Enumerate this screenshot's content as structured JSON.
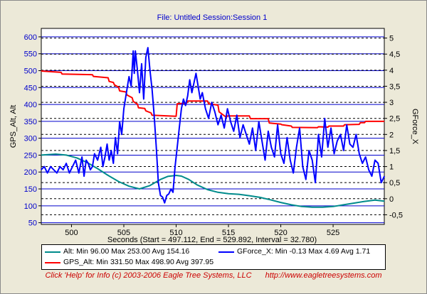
{
  "chart_data": {
    "type": "line",
    "title": "File: Untitled   Session:Session 1",
    "xlabel": "Seconds (Start = 497.112, End = 529.892, Interval = 32.780)",
    "ylabel_left": "GPS_Alt, Alt",
    "ylabel_right": "GForce_X",
    "xlim": [
      497.112,
      529.892
    ],
    "ylim_left": [
      45,
      625
    ],
    "ylim_right": [
      -0.8,
      5.3
    ],
    "x_ticks": [
      "500",
      "505",
      "510",
      "515",
      "520",
      "525"
    ],
    "y_ticks_left": [
      "50",
      "100",
      "150",
      "200",
      "250",
      "300",
      "350",
      "400",
      "450",
      "500",
      "550",
      "600"
    ],
    "y_ticks_right": [
      "-0,5",
      "0",
      "0,5",
      "1",
      "1,5",
      "2",
      "2,5",
      "3",
      "3,5",
      "4",
      "4,5",
      "5"
    ],
    "series": [
      {
        "name": "Alt",
        "axis": "left",
        "color": "#008b8b",
        "x": [
          497.1,
          498.5,
          499.5,
          500.5,
          501.5,
          502.5,
          503.5,
          504.5,
          505.5,
          506.5,
          507.5,
          508.5,
          509.2,
          510.0,
          510.5,
          511.2,
          512.0,
          513.0,
          514.0,
          515.0,
          516.0,
          517.0,
          518.0,
          519.0,
          520.0,
          521.0,
          522.0,
          523.0,
          524.0,
          525.0,
          526.0,
          527.0,
          528.0,
          529.0,
          529.9
        ],
        "y": [
          250,
          253,
          250,
          242,
          228,
          210,
          190,
          172,
          158,
          150,
          160,
          178,
          187,
          190,
          188,
          178,
          162,
          148,
          140,
          136,
          134,
          130,
          125,
          118,
          110,
          103,
          98,
          96,
          96,
          98,
          103,
          108,
          113,
          117,
          114
        ]
      },
      {
        "name": "GPS_Alt",
        "axis": "left",
        "color": "#ff0000",
        "x": [
          497.1,
          499.0,
          499.1,
          502.0,
          502.1,
          503.5,
          503.6,
          504.0,
          504.1,
          504.5,
          504.6,
          505.2,
          505.3,
          505.8,
          505.9,
          506.3,
          506.4,
          507.0,
          507.1,
          507.6,
          507.7,
          510.0,
          510.1,
          511.0,
          511.1,
          513.0,
          513.1,
          514.0,
          514.1,
          514.8,
          514.9,
          517.0,
          517.1,
          518.8,
          518.9,
          520.0,
          520.1,
          521.0,
          521.1,
          523.5,
          523.6,
          524.5,
          524.6,
          526.0,
          526.1,
          527.5,
          527.6,
          528.0,
          528.1,
          529.9
        ],
        "y": [
          498.9,
          495,
          490,
          488,
          483,
          479,
          468,
          465,
          458,
          451,
          440,
          437,
          428,
          420,
          409,
          401,
          390,
          388,
          381,
          375,
          368,
          365,
          402,
          404,
          410,
          410,
          402,
          398,
          378,
          362,
          366,
          366,
          358,
          358,
          345,
          342,
          340,
          336,
          332,
          331.5,
          334,
          333,
          336,
          336,
          340,
          341,
          346,
          346,
          350,
          350
        ]
      },
      {
        "name": "GForce_X",
        "axis": "right",
        "color": "#0000ff",
        "x": [
          497.1,
          497.4,
          497.7,
          498.0,
          498.3,
          498.6,
          498.9,
          499.2,
          499.5,
          499.8,
          500.1,
          500.4,
          500.7,
          501.0,
          501.2,
          501.4,
          501.6,
          501.8,
          502.0,
          502.2,
          502.5,
          502.8,
          503.0,
          503.2,
          503.4,
          503.6,
          503.8,
          504.0,
          504.2,
          504.4,
          504.6,
          504.8,
          505.0,
          505.2,
          505.5,
          505.7,
          505.9,
          506.0,
          506.1,
          506.3,
          506.5,
          506.7,
          506.9,
          507.1,
          507.3,
          507.5,
          507.7,
          507.9,
          508.1,
          508.3,
          508.5,
          508.7,
          508.9,
          509.1,
          509.3,
          509.5,
          509.7,
          509.9,
          510.1,
          510.3,
          510.5,
          510.7,
          510.9,
          511.1,
          511.3,
          511.5,
          511.7,
          511.9,
          512.1,
          512.3,
          512.5,
          512.8,
          513.1,
          513.4,
          513.7,
          514.0,
          514.3,
          514.6,
          514.9,
          515.2,
          515.5,
          515.8,
          516.1,
          516.4,
          516.7,
          517.0,
          517.3,
          517.6,
          517.9,
          518.2,
          518.5,
          518.8,
          519.1,
          519.4,
          519.7,
          520.0,
          520.3,
          520.6,
          520.9,
          521.2,
          521.5,
          521.8,
          522.1,
          522.4,
          522.7,
          523.0,
          523.3,
          523.6,
          523.9,
          524.2,
          524.5,
          524.8,
          525.1,
          525.4,
          525.7,
          526.0,
          526.3,
          526.6,
          526.9,
          527.2,
          527.5,
          527.8,
          528.1,
          528.4,
          528.7,
          529.0,
          529.3,
          529.6,
          529.9
        ],
        "y": [
          0.9,
          1.0,
          0.8,
          1.0,
          0.9,
          0.8,
          1.0,
          0.9,
          1.1,
          0.8,
          1.0,
          1.2,
          0.8,
          1.3,
          0.7,
          1.2,
          1.1,
          0.9,
          1.0,
          1.4,
          1.2,
          1.6,
          1.0,
          1.3,
          1.7,
          1.2,
          1.5,
          1.1,
          1.9,
          1.4,
          2.4,
          2.0,
          2.8,
          3.2,
          3.8,
          3.5,
          4.6,
          3.9,
          4.6,
          4.0,
          3.3,
          4.2,
          3.1,
          4.4,
          4.7,
          4.0,
          3.4,
          2.6,
          1.6,
          0.5,
          0.1,
          0.05,
          -0.13,
          0.1,
          0.15,
          0.3,
          0.2,
          1.0,
          1.6,
          2.2,
          2.8,
          3.1,
          2.9,
          3.2,
          3.7,
          3.3,
          3.6,
          3.9,
          3.5,
          3.1,
          3.3,
          2.8,
          2.5,
          3.0,
          2.7,
          2.3,
          2.6,
          2.2,
          2.8,
          2.4,
          2.1,
          2.6,
          1.9,
          2.3,
          2.0,
          1.7,
          2.2,
          1.5,
          2.4,
          1.8,
          1.2,
          2.1,
          1.6,
          1.3,
          2.3,
          1.4,
          1.1,
          1.9,
          1.2,
          0.8,
          1.6,
          2.2,
          1.0,
          0.6,
          1.5,
          1.2,
          0.5,
          2.0,
          1.3,
          2.5,
          1.6,
          2.2,
          1.4,
          1.8,
          2.0,
          1.5,
          2.3,
          1.7,
          1.6,
          2.0,
          1.4,
          1.1,
          1.3,
          0.9,
          0.7,
          1.2,
          1.1,
          0.5,
          0.7
        ]
      }
    ],
    "legend": {
      "alt": "Alt:  Min 96.00   Max 253.00   Avg 154.16",
      "gforce": "GForce_X:  Min -0.13   Max 4.69   Avg 1.71",
      "gps": "GPS_Alt:  Min 331.50   Max 498.90   Avg 397.95"
    },
    "grid": true
  },
  "footer": {
    "help": "Click 'Help' for Info  (c) 2003-2006 Eagle Tree Systems, LLC",
    "url": "http://www.eagletreesystems.com"
  }
}
